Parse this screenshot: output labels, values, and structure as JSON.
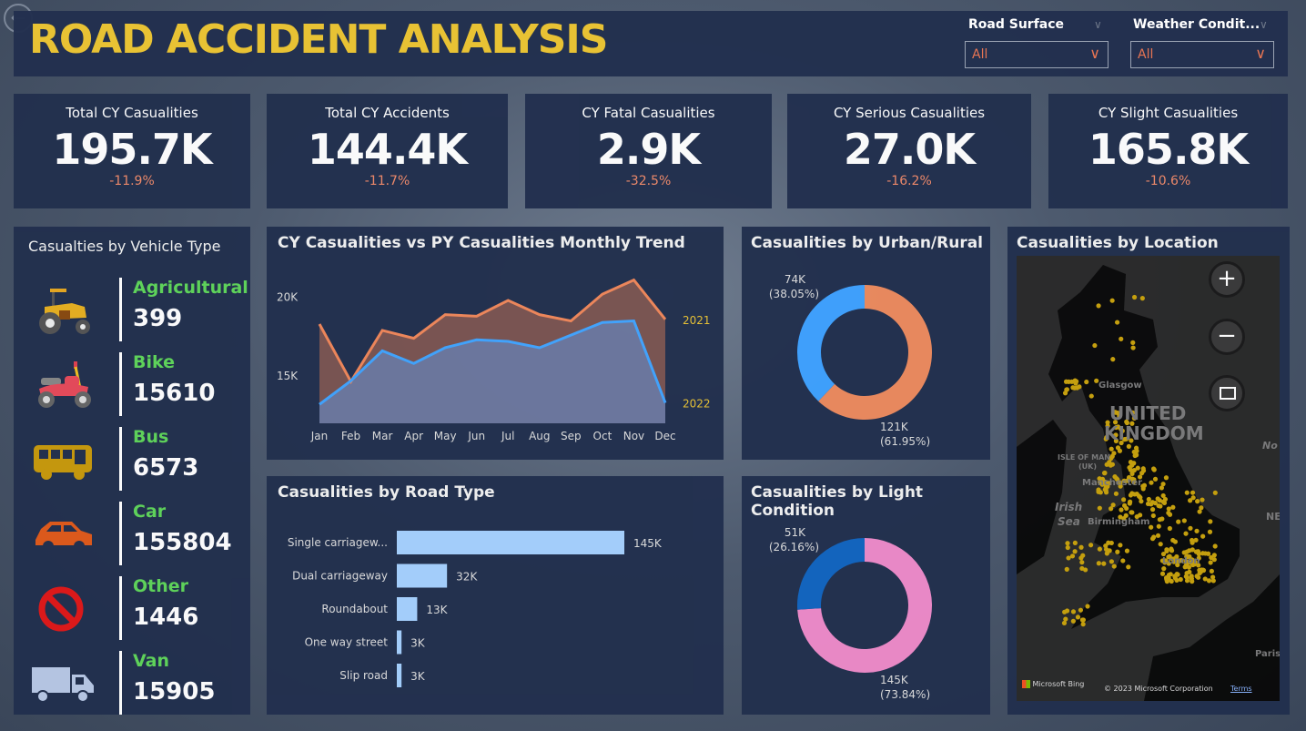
{
  "header": {
    "title": "ROAD ACCIDENT ANALYSIS",
    "back_icon": "back-arrow-icon"
  },
  "filters": [
    {
      "label": "Road Surface",
      "value": "All"
    },
    {
      "label": "Weather Condit...",
      "value": "All"
    }
  ],
  "kpis": [
    {
      "label": "Total CY Casualities",
      "value": "195.7K",
      "change": "-11.9%"
    },
    {
      "label": "Total CY Accidents",
      "value": "144.4K",
      "change": "-11.7%"
    },
    {
      "label": "CY Fatal Casualities",
      "value": "2.9K",
      "change": "-32.5%"
    },
    {
      "label": "CY Serious Casualities",
      "value": "27.0K",
      "change": "-16.2%"
    },
    {
      "label": "CY Slight Casualities",
      "value": "165.8K",
      "change": "-10.6%"
    }
  ],
  "vehicles": {
    "title": "Casualties by Vehicle Type",
    "items": [
      {
        "name": "Agricultural",
        "value": "399",
        "icon": "tractor-icon"
      },
      {
        "name": "Bike",
        "value": "15610",
        "icon": "motorbike-icon"
      },
      {
        "name": "Bus",
        "value": "6573",
        "icon": "bus-icon"
      },
      {
        "name": "Car",
        "value": "155804",
        "icon": "car-icon"
      },
      {
        "name": "Other",
        "value": "1446",
        "icon": "no-entry-icon"
      },
      {
        "name": "Van",
        "value": "15905",
        "icon": "van-icon"
      }
    ]
  },
  "chart_data": [
    {
      "type": "area",
      "title": "CY Casualities vs PY Casualities Monthly Trend",
      "categories": [
        "Jan",
        "Feb",
        "Mar",
        "Apr",
        "May",
        "Jun",
        "Jul",
        "Aug",
        "Sep",
        "Oct",
        "Nov",
        "Dec"
      ],
      "y_ticks": [
        "15K",
        "20K"
      ],
      "ylim": [
        12000,
        22000
      ],
      "grid": false,
      "series": [
        {
          "name": "2021",
          "color": "#f0875a",
          "values": [
            18300,
            14650,
            17900,
            17400,
            18900,
            18800,
            19800,
            18900,
            18500,
            20200,
            21100,
            18600
          ]
        },
        {
          "name": "2022",
          "color": "#41a4ff",
          "values": [
            13200,
            14700,
            16600,
            15800,
            16800,
            17300,
            17200,
            16800,
            17600,
            18400,
            18500,
            13300
          ]
        }
      ]
    },
    {
      "type": "bar",
      "title": "Casualities by Road Type",
      "categories": [
        "Single carriagew...",
        "Dual carriageway",
        "Roundabout",
        "One way street",
        "Slip road"
      ],
      "values": [
        145000,
        32000,
        13000,
        3000,
        3000
      ],
      "labels": [
        "145K",
        "32K",
        "13K",
        "3K",
        "3K"
      ],
      "color": "#a6d1ff"
    },
    {
      "type": "pie",
      "title": "Casualities by Urban/Rural",
      "donut": true,
      "slices": [
        {
          "value": 121000,
          "label": "121K",
          "pct": "(61.95%)",
          "color": "#ec8a5e"
        },
        {
          "value": 74000,
          "label": "74K",
          "pct": "(38.05%)",
          "color": "#3ea1ff"
        }
      ]
    },
    {
      "type": "pie",
      "title": "Casualities by Light Condition",
      "donut": true,
      "slices": [
        {
          "value": 145000,
          "label": "145K",
          "pct": "(73.84%)",
          "color": "#ee8ac9"
        },
        {
          "value": 51000,
          "label": "51K",
          "pct": "(26.16%)",
          "color": "#1265c0"
        }
      ]
    }
  ],
  "map": {
    "title": "Casualities by Location",
    "labels": [
      "UNITED",
      "KINGDOM",
      "Glasgow",
      "ISLE OF MAN",
      "(UK)",
      "Manchester",
      "Irish",
      "Sea",
      "Birmingham",
      "London",
      "Paris",
      "No",
      "NE"
    ],
    "attribution": "Microsoft Bing",
    "copyright": "© 2023 Microsoft Corporation",
    "terms": "Terms",
    "dot_color": "#c9a20c"
  }
}
